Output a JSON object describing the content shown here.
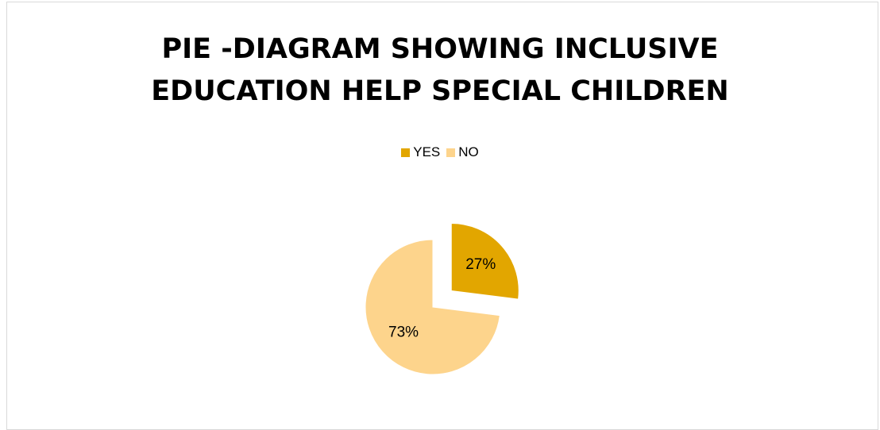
{
  "chart_data": {
    "type": "pie",
    "title_lines": [
      "PIE -DIAGRAM SHOWING INCLUSIVE",
      "EDUCATION HELP SPECIAL CHILDREN"
    ],
    "categories": [
      "YES",
      "NO"
    ],
    "values": [
      27,
      73
    ],
    "data_labels": [
      "27%",
      "73%"
    ],
    "colors": [
      "#E2A600",
      "#FDD48C"
    ],
    "legend_position": "top",
    "exploded": [
      "YES"
    ]
  }
}
